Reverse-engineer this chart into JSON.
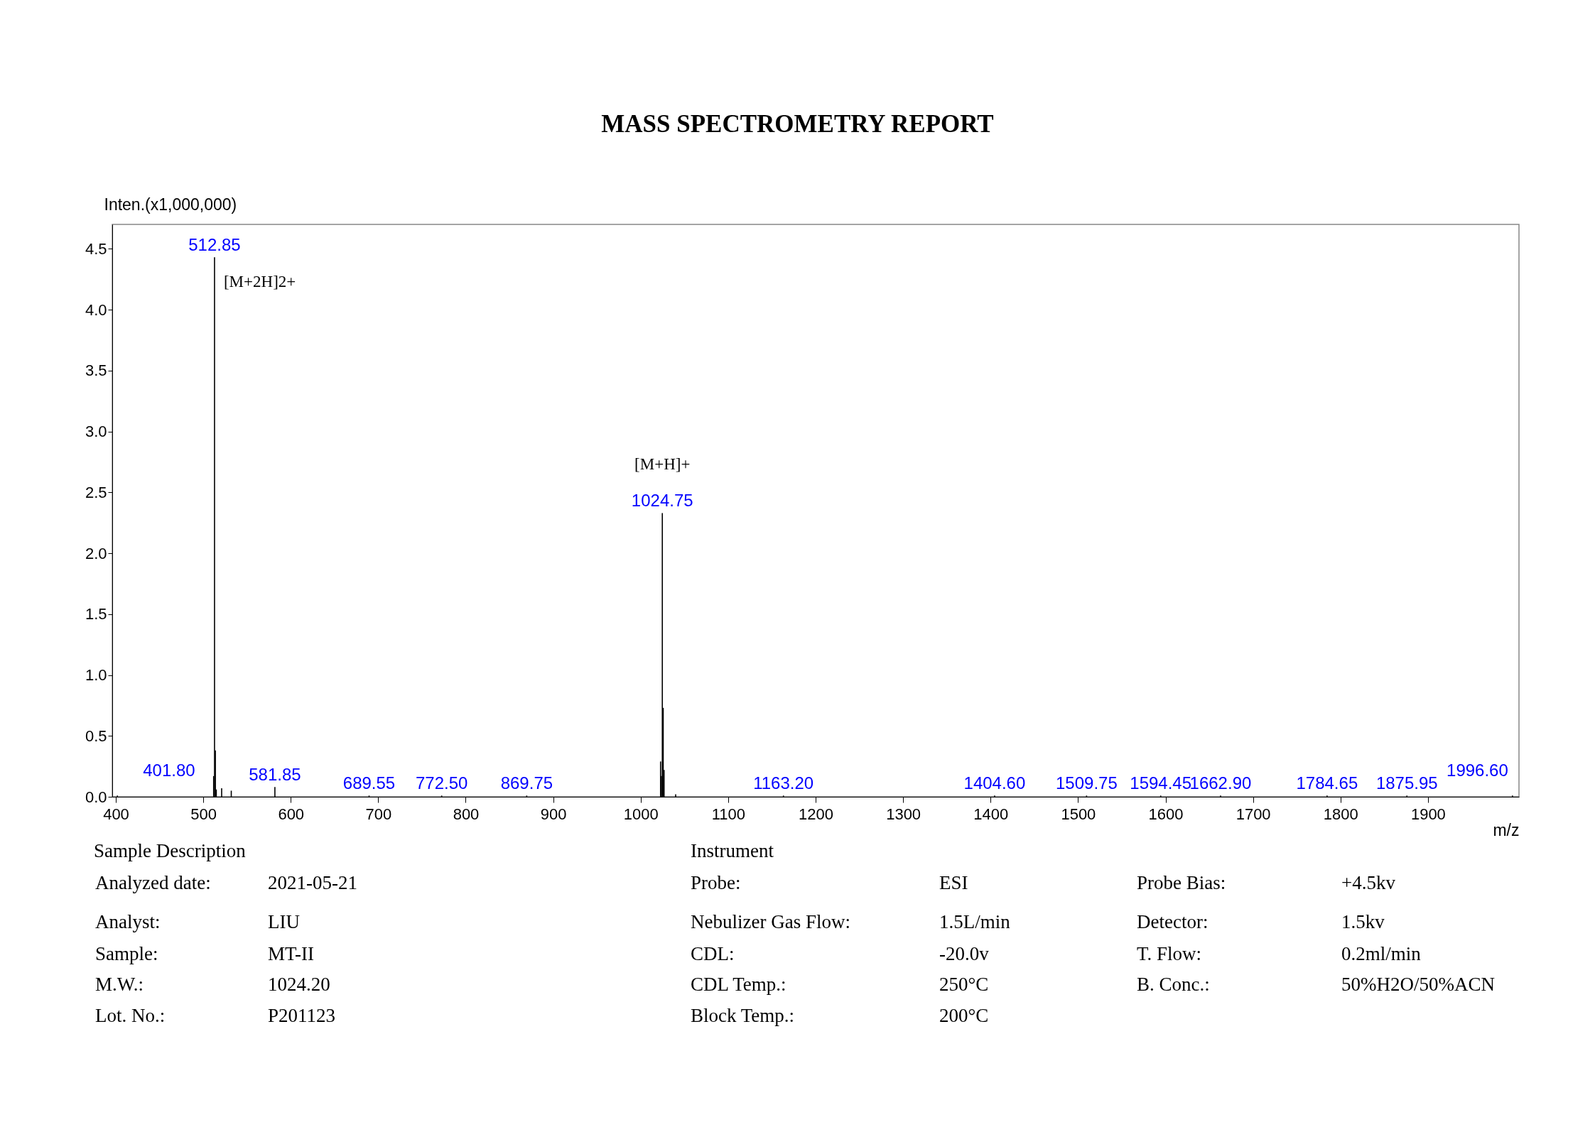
{
  "chart_data": {
    "type": "bar",
    "title": "MASS SPECTROMETRY REPORT",
    "xlabel": "m/z",
    "ylabel": "Inten.(x1,000,000)",
    "x": [
      401.8,
      511.85,
      512.85,
      513.85,
      514.85,
      521,
      532,
      581.85,
      689.55,
      772.5,
      869.75,
      1022.75,
      1023.75,
      1024.75,
      1025.75,
      1026.75,
      1040,
      1163.2,
      1404.6,
      1509.75,
      1594.45,
      1662.9,
      1784.65,
      1875.95,
      1996.6
    ],
    "values": [
      0.01,
      0.17,
      4.43,
      0.38,
      0.06,
      0.07,
      0.05,
      0.08,
      0.01,
      0.01,
      0.01,
      0.29,
      0.17,
      2.33,
      0.73,
      0.22,
      0.02,
      0.01,
      0.01,
      0.01,
      0.01,
      0.01,
      0.01,
      0.01,
      0.01
    ],
    "color": "#000000",
    "xlim": [
      400,
      2000
    ],
    "xticks": [
      400,
      500,
      600,
      700,
      800,
      900,
      1000,
      1100,
      1200,
      1300,
      1400,
      1500,
      1600,
      1700,
      1800,
      1900
    ],
    "ylim": [
      0,
      4.7
    ],
    "yticks": [
      {
        "value": 0,
        "label": "0.0"
      },
      {
        "value": 0.5,
        "label": "0.5"
      },
      {
        "value": 1,
        "label": "1.0"
      },
      {
        "value": 1.5,
        "label": "1.5"
      },
      {
        "value": 2,
        "label": "2.0"
      },
      {
        "value": 2.5,
        "label": "2.5"
      },
      {
        "value": 3,
        "label": "3.0"
      },
      {
        "value": 3.5,
        "label": "3.5"
      },
      {
        "value": 4,
        "label": "4.0"
      },
      {
        "value": 4.5,
        "label": "4.5"
      }
    ],
    "annotations": [
      {
        "text": "[M+2H]2+",
        "x": 512.85,
        "y": 4.43
      },
      {
        "text": "[M+H]+",
        "x": 1024.75,
        "y": 2.33
      },
      {
        "text": "401.80",
        "x": 401.8,
        "y": 0.01
      },
      {
        "text": "512.85",
        "x": 512.85,
        "y": 4.43
      },
      {
        "text": "581.85",
        "x": 581.85,
        "y": 0.08
      },
      {
        "text": "689.55",
        "x": 689.55,
        "y": 0.01
      },
      {
        "text": "772.50",
        "x": 772.5,
        "y": 0.01
      },
      {
        "text": "869.75",
        "x": 869.75,
        "y": 0.01
      },
      {
        "text": "1024.75",
        "x": 1024.75,
        "y": 2.33
      },
      {
        "text": "1163.20",
        "x": 1163.2,
        "y": 0.01
      },
      {
        "text": "1404.60",
        "x": 1404.6,
        "y": 0.01
      },
      {
        "text": "1509.75",
        "x": 1509.75,
        "y": 0.01
      },
      {
        "text": "1594.45",
        "x": 1594.45,
        "y": 0.01
      },
      {
        "text": "1662.90",
        "x": 1662.9,
        "y": 0.01
      },
      {
        "text": "1784.65",
        "x": 1784.65,
        "y": 0.01
      },
      {
        "text": "1875.95",
        "x": 1875.95,
        "y": 0.01
      },
      {
        "text": "1996.60",
        "x": 1996.6,
        "y": 0.01
      },
      "Sample Description",
      "Analyzed date:",
      "2021-05-21",
      "Analyst:",
      "LIU",
      "Sample:",
      "MT-II",
      "M.W.:",
      "1024.20",
      "Lot. No.:",
      "P201123",
      "Instrument",
      "Probe:",
      "ESI",
      "Probe Bias:",
      "+4.5kv",
      "Nebulizer Gas Flow:",
      "1.5L/min",
      "Detector:",
      "1.5kv",
      "CDL:",
      "-20.0v",
      "T. Flow:",
      "0.2ml/min",
      "CDL Temp.:",
      "250°C",
      "B. Conc.:",
      "50%H2O/50%ACN",
      "Block Temp.:",
      "200°C"
    ]
  }
}
